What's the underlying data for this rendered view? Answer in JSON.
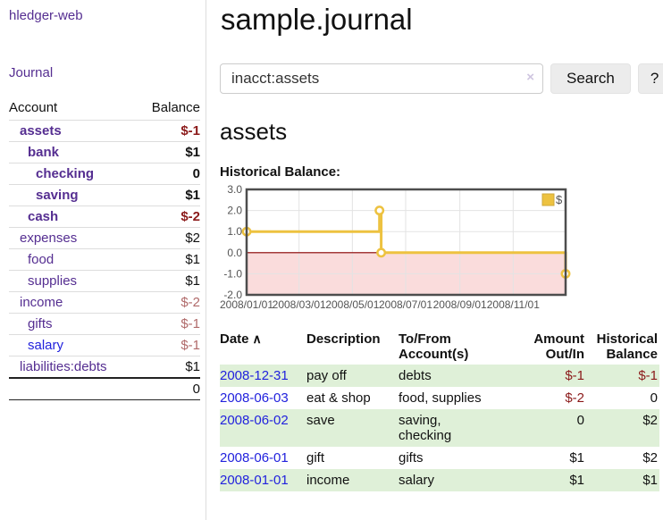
{
  "app": {
    "brand": "hledger-web",
    "nav_journal": "Journal"
  },
  "header": {
    "title": "sample.journal"
  },
  "search": {
    "value": "inacct:assets",
    "clear_icon": "×",
    "button": "Search",
    "help_button": "?"
  },
  "account_page": {
    "heading": "assets",
    "chart_label": "Historical Balance:"
  },
  "sidebar": {
    "col_account": "Account",
    "col_balance": "Balance",
    "rows": [
      {
        "name": "assets",
        "depth": 1,
        "bold": true,
        "balance": "$-1",
        "neg": "strong",
        "link": "purple"
      },
      {
        "name": "bank",
        "depth": 2,
        "bold": true,
        "balance": "$1",
        "neg": "none",
        "link": "purple"
      },
      {
        "name": "checking",
        "depth": 3,
        "bold": true,
        "balance": "0",
        "neg": "none",
        "link": "purple"
      },
      {
        "name": "saving",
        "depth": 3,
        "bold": true,
        "balance": "$1",
        "neg": "none",
        "link": "purple"
      },
      {
        "name": "cash",
        "depth": 2,
        "bold": true,
        "balance": "$-2",
        "neg": "strong",
        "link": "purple"
      },
      {
        "name": "expenses",
        "depth": 1,
        "bold": false,
        "balance": "$2",
        "neg": "none",
        "link": "purple"
      },
      {
        "name": "food",
        "depth": 2,
        "bold": false,
        "balance": "$1",
        "neg": "none",
        "link": "purple"
      },
      {
        "name": "supplies",
        "depth": 2,
        "bold": false,
        "balance": "$1",
        "neg": "none",
        "link": "purple"
      },
      {
        "name": "income",
        "depth": 1,
        "bold": false,
        "balance": "$-2",
        "neg": "soft",
        "link": "purple"
      },
      {
        "name": "gifts",
        "depth": 2,
        "bold": false,
        "balance": "$-1",
        "neg": "soft",
        "link": "purple"
      },
      {
        "name": "salary",
        "depth": 2,
        "bold": false,
        "balance": "$-1",
        "neg": "soft",
        "link": "blue"
      },
      {
        "name": "liabilities:debts",
        "depth": 1,
        "bold": false,
        "balance": "$1",
        "neg": "none",
        "link": "purple"
      }
    ],
    "total": "0"
  },
  "chart_data": {
    "type": "line",
    "title": "Historical Balance",
    "step": true,
    "series": [
      {
        "name": "$",
        "color": "#edc240",
        "points": [
          {
            "x": "2008-01-01",
            "y": 1
          },
          {
            "x": "2008-06-01",
            "y": 2
          },
          {
            "x": "2008-06-03",
            "y": 0
          },
          {
            "x": "2008-12-31",
            "y": -1
          }
        ]
      }
    ],
    "xlim": [
      "2008-01-01",
      "2008-12-31"
    ],
    "ylim": [
      -2,
      3
    ],
    "y_ticks": [
      {
        "label": "3.0",
        "value": 3
      },
      {
        "label": "2.0",
        "value": 2
      },
      {
        "label": "1.0",
        "value": 1
      },
      {
        "label": "0.0",
        "value": 0
      },
      {
        "label": "-1.0",
        "value": -1
      },
      {
        "label": "-2.0",
        "value": -2
      }
    ],
    "x_ticks": [
      {
        "label": "2008/01/01",
        "date": "2008-01-01"
      },
      {
        "label": "2008/03/01",
        "date": "2008-03-01"
      },
      {
        "label": "2008/05/01",
        "date": "2008-05-01"
      },
      {
        "label": "2008/07/01",
        "date": "2008-07-01"
      },
      {
        "label": "2008/09/01",
        "date": "2008-09-01"
      },
      {
        "label": "2008/11/01",
        "date": "2008-11-01"
      }
    ],
    "grid": true,
    "legend_position": "top-right",
    "negative_region_fill": "#fadcdc",
    "zero_line_color": "#8b0000",
    "grid_color": "#e3e3e3",
    "border_color": "#4d4d4d",
    "tick_text_color": "#545454"
  },
  "register": {
    "columns": {
      "date": "Date",
      "sort_icon": "∧",
      "description": "Description",
      "accounts": "To/From Account(s)",
      "amount": "Amount Out/In",
      "balance": "Historical Balance"
    },
    "rows": [
      {
        "date": "2008-12-31",
        "description": "pay off",
        "accounts": "debts",
        "amount": "$-1",
        "amount_neg": true,
        "balance": "$-1",
        "balance_neg": true
      },
      {
        "date": "2008-06-03",
        "description": "eat & shop",
        "accounts": "food, supplies",
        "amount": "$-2",
        "amount_neg": true,
        "balance": "0",
        "balance_neg": false
      },
      {
        "date": "2008-06-02",
        "description": "save",
        "accounts": "saving,\nchecking",
        "amount": "0",
        "amount_neg": false,
        "balance": "$2",
        "balance_neg": false
      },
      {
        "date": "2008-06-01",
        "description": "gift",
        "accounts": "gifts",
        "amount": "$1",
        "amount_neg": false,
        "balance": "$2",
        "balance_neg": false
      },
      {
        "date": "2008-01-01",
        "description": "income",
        "accounts": "salary",
        "amount": "$1",
        "amount_neg": false,
        "balance": "$1",
        "balance_neg": false
      }
    ]
  },
  "colors": {
    "link_purple": "#552e91",
    "link_blue": "#2222dd",
    "negative_strong": "#8b1a1a",
    "negative_soft": "#b06a6a",
    "row_stripe_green": "#dff0d8",
    "chart_line": "#edc240",
    "chart_negative_fill": "#fadcdc",
    "chart_zero_line": "#8b0000"
  }
}
